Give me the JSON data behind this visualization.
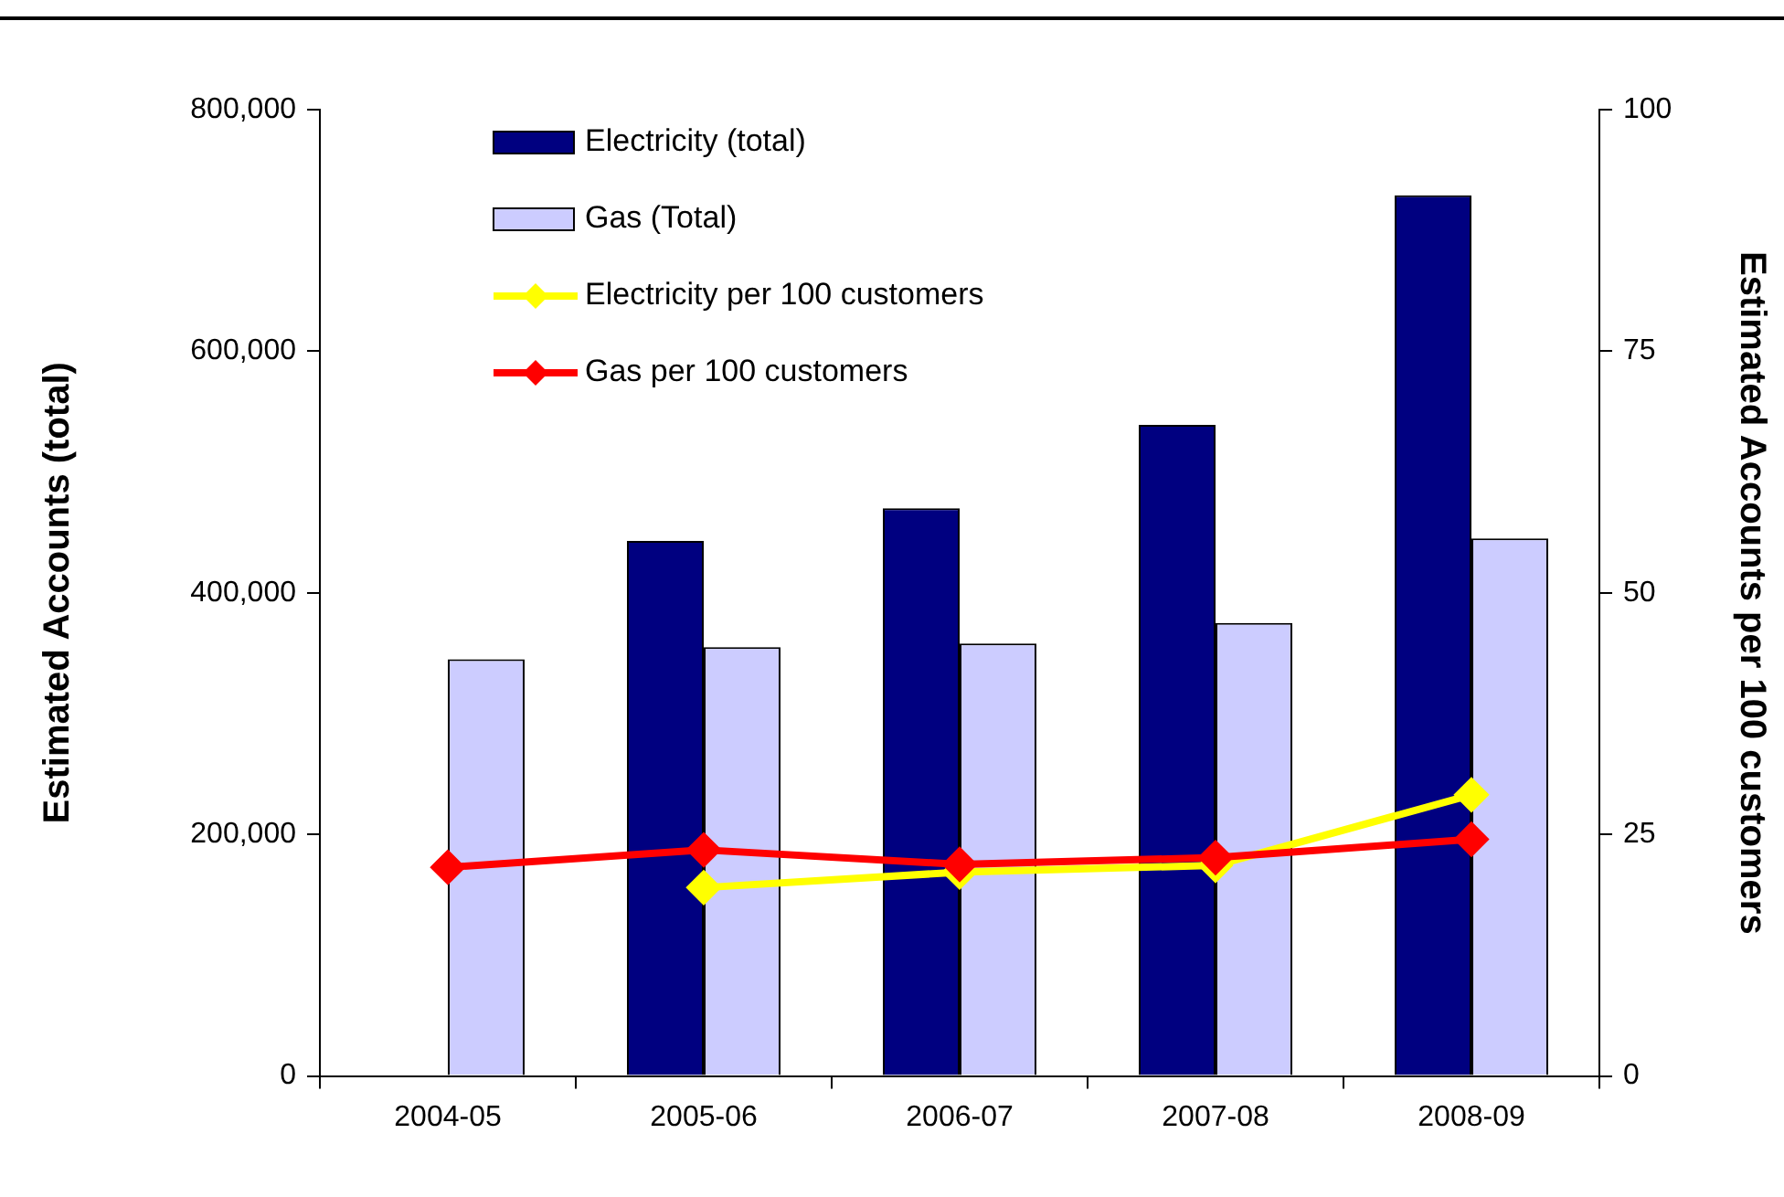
{
  "chart_data": {
    "type": "bar",
    "categories": [
      "2004-05",
      "2005-06",
      "2006-07",
      "2007-08",
      "2008-09"
    ],
    "ylabel": "Estimated Accounts (total)",
    "y2label": "Estimated Accounts per 100 customers",
    "series": [
      {
        "name": "Electricity (total)",
        "color": "#000080",
        "values": [
          null,
          443000,
          470000,
          539000,
          729000
        ]
      },
      {
        "name": "Gas (Total)",
        "color": "#ccccff",
        "values": [
          345000,
          355000,
          358000,
          375000,
          445000
        ]
      },
      {
        "name": "Electricity per 100 customers",
        "type": "line",
        "axis": "y2",
        "color": "#ffff00",
        "values": [
          null,
          19.5,
          21.1,
          21.8,
          29.1
        ]
      },
      {
        "name": "Gas per 100 customers",
        "type": "line",
        "axis": "y2",
        "color": "#ff0000",
        "values": [
          21.6,
          23.4,
          21.9,
          22.6,
          24.5
        ]
      }
    ],
    "ylim": [
      0,
      800000
    ],
    "yticks": [
      {
        "value": 0,
        "label": "0"
      },
      {
        "value": 200000,
        "label": "200,000"
      },
      {
        "value": 400000,
        "label": "400,000"
      },
      {
        "value": 600000,
        "label": "600,000"
      },
      {
        "value": 800000,
        "label": "800,000"
      }
    ],
    "y2lim": [
      0,
      100
    ],
    "y2ticks": [
      0,
      25,
      50,
      75,
      100
    ],
    "grid": false,
    "legend": "top left",
    "marker": "diamond",
    "line_style": "solid"
  }
}
